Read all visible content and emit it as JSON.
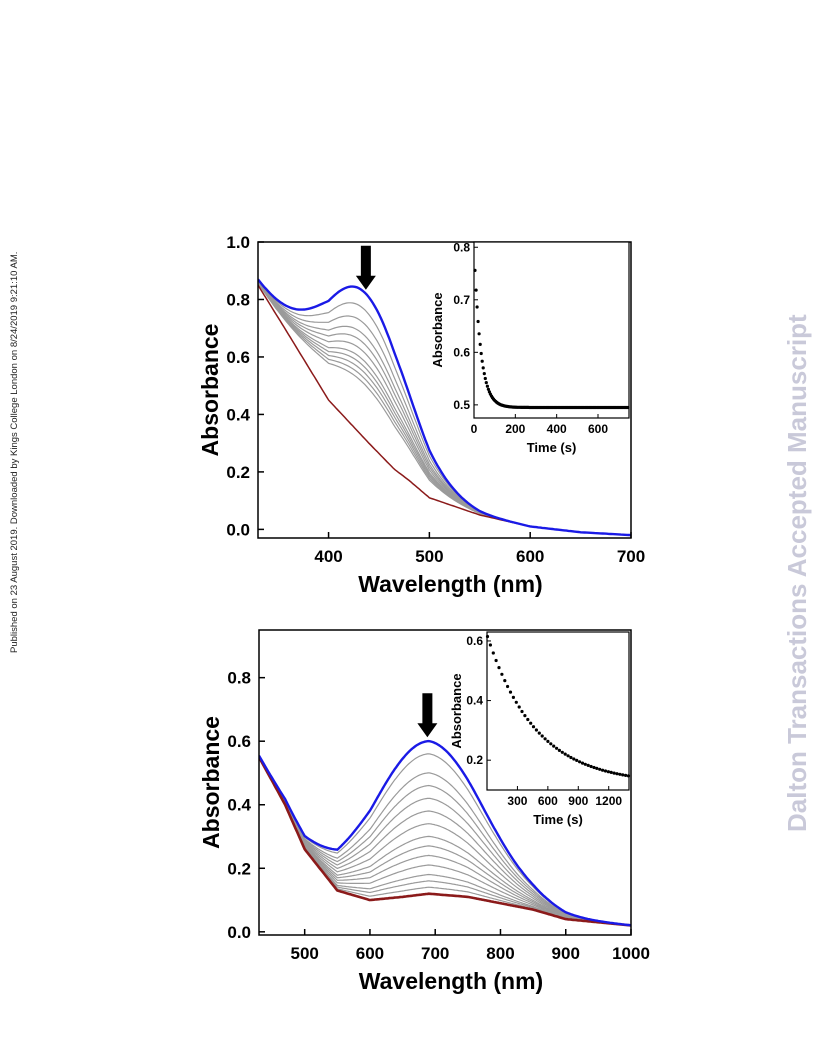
{
  "side_note": "Published on 23 August 2019. Downloaded by Kings College London on 8/24/2019 9:21:10 AM.",
  "watermark": "Dalton Transactions Accepted Manuscript",
  "colors": {
    "first": "#1a1ae6",
    "final": "#8b1a1a",
    "intermediate": "#9a9a9a",
    "arrow": "#000000",
    "watermark": "#c9c9d9"
  },
  "chart_data": [
    {
      "type": "line",
      "xlabel": "Wavelength (nm)",
      "ylabel": "Absorbance",
      "xlim": [
        330,
        700
      ],
      "ylim": [
        -0.03,
        1.0
      ],
      "xticks": [
        400,
        500,
        600,
        700
      ],
      "yticks": [
        0.0,
        0.2,
        0.4,
        0.6,
        0.8,
        1.0
      ],
      "tick_labels_y": [
        "0.0",
        "0.2",
        "0.4",
        "0.6",
        "0.8",
        "1.0"
      ],
      "tick_labels_x": [
        "400",
        "500",
        "600",
        "700"
      ],
      "arrow_at_x": 437,
      "band": {
        "center": 437,
        "width": 42,
        "baseline_floor": -0.02,
        "trough_x": 378
      },
      "first_peak": 0.82,
      "peak_sequence": [
        0.82,
        0.76,
        0.71,
        0.67,
        0.64,
        0.61,
        0.58,
        0.56,
        0.54,
        0.52,
        0.5
      ],
      "final_trace": {
        "x": [
          330,
          360,
          400,
          440,
          465,
          480,
          500,
          550,
          600,
          650,
          700
        ],
        "y": [
          0.85,
          0.68,
          0.45,
          0.3,
          0.21,
          0.17,
          0.11,
          0.05,
          0.01,
          -0.01,
          -0.02
        ]
      },
      "inset": {
        "type": "scatter",
        "xlabel": "Time (s)",
        "ylabel": "Absorbance",
        "xlim": [
          0,
          750
        ],
        "ylim": [
          0.475,
          0.81
        ],
        "xticks": [
          0,
          200,
          400,
          600
        ],
        "yticks": [
          0.5,
          0.6,
          0.7,
          0.8
        ],
        "tick_labels_x": [
          "0",
          "200",
          "400",
          "600"
        ],
        "tick_labels_y": [
          "0.5",
          "0.6",
          "0.7",
          "0.8"
        ],
        "decay": {
          "y0": 0.8,
          "y_inf": 0.495,
          "tau": 32
        },
        "points": 150
      }
    },
    {
      "type": "line",
      "xlabel": "Wavelength (nm)",
      "ylabel": "Absorbance",
      "xlim": [
        430,
        1000
      ],
      "ylim": [
        -0.01,
        0.95
      ],
      "xticks": [
        500,
        600,
        700,
        800,
        900,
        1000
      ],
      "yticks": [
        0.0,
        0.2,
        0.4,
        0.6,
        0.8
      ],
      "tick_labels_y": [
        "0.0",
        "0.2",
        "0.4",
        "0.6",
        "0.8"
      ],
      "tick_labels_x": [
        "500",
        "600",
        "700",
        "800",
        "900",
        "1000"
      ],
      "arrow_at_x": 688,
      "band": {
        "center": 688,
        "width": 85,
        "baseline_floor": 0.01,
        "trough_x": 530
      },
      "first_peak": 0.6,
      "peak_sequence": [
        0.6,
        0.56,
        0.5,
        0.46,
        0.42,
        0.38,
        0.34,
        0.3,
        0.27,
        0.24,
        0.21,
        0.18,
        0.16,
        0.14,
        0.12
      ],
      "final_trace": {
        "x": [
          430,
          470,
          500,
          550,
          600,
          650,
          690,
          750,
          800,
          850,
          900,
          950,
          1000
        ],
        "y": [
          0.55,
          0.4,
          0.26,
          0.13,
          0.1,
          0.11,
          0.12,
          0.11,
          0.09,
          0.07,
          0.04,
          0.03,
          0.02
        ]
      },
      "inset": {
        "type": "scatter",
        "xlabel": "Time (s)",
        "ylabel": "Absorbance",
        "xlim": [
          0,
          1400
        ],
        "ylim": [
          0.1,
          0.63
        ],
        "xticks": [
          300,
          600,
          900,
          1200
        ],
        "yticks": [
          0.2,
          0.4,
          0.6
        ],
        "tick_labels_x": [
          "300",
          "600",
          "900",
          "1200"
        ],
        "tick_labels_y": [
          "0.2",
          "0.4",
          "0.6"
        ],
        "decay": {
          "y0": 0.62,
          "y_inf": 0.12,
          "tau": 480
        },
        "points": 50
      }
    }
  ]
}
